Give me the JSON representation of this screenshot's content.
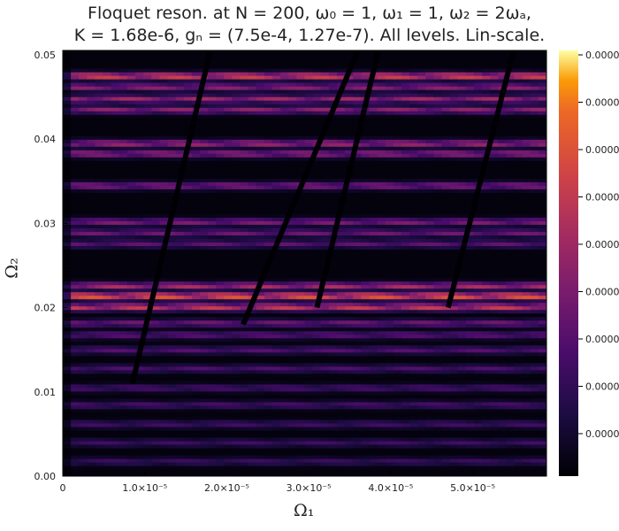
{
  "title": {
    "line1": "Floquet reson. at N = 200, ω₀ = 1, ω₁ = 1, ω₂ = 2ωₐ,",
    "line2": "K = 1.68e-6, gₙ = (7.5e-4, 1.27e-7). All levels. Lin-scale."
  },
  "xlabel": "Ω₁",
  "ylabel": "Ω₂",
  "colorbar_tick_label": "0.0000",
  "chart_data": {
    "type": "heatmap",
    "title": "Floquet reson. at N = 200, ω₀ = 1, ω₁ = 1, ω₂ = 2ωₐ, K = 1.68e-6, gₙ = (7.5e-4, 1.27e-7). All levels. Lin-scale.",
    "xlabel": "Ω₁",
    "ylabel": "Ω₂",
    "xlim": [
      0,
      5.9e-05
    ],
    "ylim": [
      0,
      0.0505
    ],
    "x_ticks": [
      {
        "value": 0,
        "label": "0"
      },
      {
        "value": 1e-05,
        "label": "1.0×10⁻⁵"
      },
      {
        "value": 2e-05,
        "label": "2.0×10⁻⁵"
      },
      {
        "value": 3e-05,
        "label": "3.0×10⁻⁵"
      },
      {
        "value": 4e-05,
        "label": "4.0×10⁻⁵"
      },
      {
        "value": 5e-05,
        "label": "5.0×10⁻⁵"
      }
    ],
    "y_ticks": [
      {
        "value": 0,
        "label": "0.00"
      },
      {
        "value": 0.01,
        "label": "0.01"
      },
      {
        "value": 0.02,
        "label": "0.02"
      },
      {
        "value": 0.03,
        "label": "0.03"
      },
      {
        "value": 0.04,
        "label": "0.04"
      },
      {
        "value": 0.05,
        "label": "0.05"
      }
    ],
    "colormap": "inferno",
    "colorbar_ticks": 9,
    "colors": {
      "low": "#000004",
      "mid": "#b63679",
      "high": "#fcffa4",
      "plot_bg": "#000004"
    },
    "bright_bands": [
      {
        "y": 0.0214,
        "intensity": 0.85
      },
      {
        "y": 0.0201,
        "intensity": 0.7
      },
      {
        "y": 0.0226,
        "intensity": 0.6
      },
      {
        "y": 0.0475,
        "intensity": 0.75
      },
      {
        "y": 0.0462,
        "intensity": 0.5
      },
      {
        "y": 0.0448,
        "intensity": 0.55
      },
      {
        "y": 0.0435,
        "intensity": 0.5
      },
      {
        "y": 0.0395,
        "intensity": 0.55
      },
      {
        "y": 0.0383,
        "intensity": 0.5
      },
      {
        "y": 0.0345,
        "intensity": 0.45
      },
      {
        "y": 0.0302,
        "intensity": 0.45
      },
      {
        "y": 0.0289,
        "intensity": 0.4
      },
      {
        "y": 0.0276,
        "intensity": 0.35
      },
      {
        "y": 0.0182,
        "intensity": 0.4
      },
      {
        "y": 0.0168,
        "intensity": 0.35
      },
      {
        "y": 0.015,
        "intensity": 0.32
      },
      {
        "y": 0.0128,
        "intensity": 0.3
      },
      {
        "y": 0.0105,
        "intensity": 0.28
      },
      {
        "y": 0.0085,
        "intensity": 0.28
      },
      {
        "y": 0.0062,
        "intensity": 0.26
      },
      {
        "y": 0.004,
        "intensity": 0.25
      },
      {
        "y": 0.0018,
        "intensity": 0.24
      }
    ],
    "resonance_lines": [
      {
        "x0": 8.5e-06,
        "y0": 0.011,
        "x1": 1.8e-05,
        "y1": 0.0505
      },
      {
        "x0": 2.2e-05,
        "y0": 0.018,
        "x1": 3.6e-05,
        "y1": 0.0505
      },
      {
        "x0": 3.1e-05,
        "y0": 0.02,
        "x1": 3.85e-05,
        "y1": 0.0505
      },
      {
        "x0": 4.7e-05,
        "y0": 0.02,
        "x1": 5.5e-05,
        "y1": 0.0505
      }
    ]
  }
}
